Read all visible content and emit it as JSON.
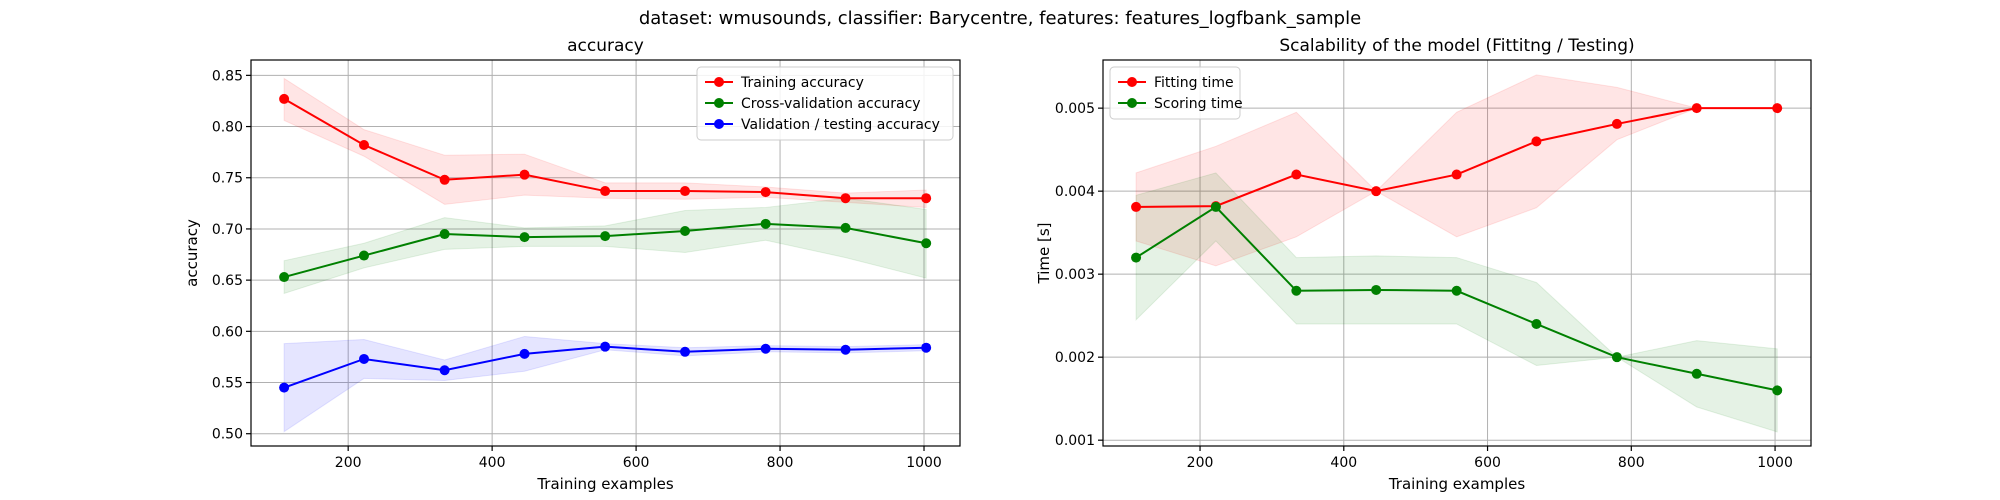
{
  "suptitle": "dataset: wmusounds, classifier: Barycentre, features: features_logfbank_sample",
  "chart_data": [
    {
      "type": "line",
      "title": "accuracy",
      "xlabel": "Training examples",
      "ylabel": "accuracy",
      "xlim": [
        65,
        1050
      ],
      "ylim": [
        0.488,
        0.865
      ],
      "xticks": [
        200,
        400,
        600,
        800,
        1000
      ],
      "xtick_labels": [
        "200",
        "400",
        "600",
        "800",
        "1000"
      ],
      "yticks": [
        0.5,
        0.55,
        0.6,
        0.65,
        0.7,
        0.75,
        0.8,
        0.85
      ],
      "ytick_labels": [
        "0.50",
        "0.55",
        "0.60",
        "0.65",
        "0.70",
        "0.75",
        "0.80",
        "0.85"
      ],
      "grid": true,
      "legend": "top-right",
      "x": [
        111,
        222,
        334,
        445,
        557,
        668,
        780,
        891,
        1003
      ],
      "series": [
        {
          "name": "Training accuracy",
          "color": "#ff0000",
          "fill": "#ff0000",
          "values": [
            0.827,
            0.782,
            0.748,
            0.753,
            0.737,
            0.737,
            0.736,
            0.73,
            0.73
          ],
          "lower": [
            0.806,
            0.771,
            0.724,
            0.733,
            0.73,
            0.729,
            0.731,
            0.726,
            0.721
          ],
          "upper": [
            0.847,
            0.797,
            0.772,
            0.773,
            0.745,
            0.745,
            0.741,
            0.735,
            0.738
          ]
        },
        {
          "name": "Cross-validation accuracy",
          "color": "#008000",
          "fill": "#008000",
          "values": [
            0.653,
            0.674,
            0.695,
            0.692,
            0.693,
            0.698,
            0.705,
            0.701,
            0.686
          ],
          "lower": [
            0.637,
            0.662,
            0.68,
            0.683,
            0.683,
            0.677,
            0.689,
            0.672,
            0.652
          ],
          "upper": [
            0.669,
            0.686,
            0.711,
            0.701,
            0.703,
            0.718,
            0.721,
            0.73,
            0.719
          ]
        },
        {
          "name": "Validation / testing accuracy",
          "color": "#0000ff",
          "fill": "#0000ff",
          "values": [
            0.545,
            0.573,
            0.562,
            0.578,
            0.585,
            0.58,
            0.583,
            0.582,
            0.584
          ],
          "lower": [
            0.502,
            0.554,
            0.552,
            0.561,
            0.582,
            0.576,
            0.58,
            0.579,
            0.581
          ],
          "upper": [
            0.588,
            0.592,
            0.572,
            0.595,
            0.588,
            0.584,
            0.586,
            0.585,
            0.587
          ]
        }
      ]
    },
    {
      "type": "line",
      "title": "Scalability of the model (Fittitng / Testing)",
      "xlabel": "Training examples",
      "ylabel": "Time [s]",
      "xlim": [
        65,
        1050
      ],
      "ylim": [
        0.00093,
        0.00558
      ],
      "xticks": [
        200,
        400,
        600,
        800,
        1000
      ],
      "xtick_labels": [
        "200",
        "400",
        "600",
        "800",
        "1000"
      ],
      "yticks": [
        0.001,
        0.002,
        0.003,
        0.004,
        0.005
      ],
      "ytick_labels": [
        "0.001",
        "0.002",
        "0.003",
        "0.004",
        "0.005"
      ],
      "grid": true,
      "legend": "top-left",
      "x": [
        111,
        222,
        334,
        445,
        557,
        668,
        780,
        891,
        1003
      ],
      "series": [
        {
          "name": "Fitting time",
          "color": "#ff0000",
          "fill": "#ff0000",
          "values": [
            0.00381,
            0.00382,
            0.0042,
            0.004,
            0.0042,
            0.0046,
            0.00481,
            0.005,
            0.005
          ],
          "lower": [
            0.0034,
            0.0031,
            0.00345,
            0.004,
            0.00345,
            0.0038,
            0.00462,
            0.005,
            0.005
          ],
          "upper": [
            0.00422,
            0.00454,
            0.00495,
            0.004,
            0.00495,
            0.0054,
            0.00525,
            0.005,
            0.005
          ]
        },
        {
          "name": "Scoring time",
          "color": "#008000",
          "fill": "#008000",
          "values": [
            0.0032,
            0.00381,
            0.0028,
            0.00281,
            0.0028,
            0.0024,
            0.002,
            0.0018,
            0.0016
          ],
          "lower": [
            0.00245,
            0.0034,
            0.0024,
            0.0024,
            0.0024,
            0.0019,
            0.002,
            0.0014,
            0.0011
          ],
          "upper": [
            0.00395,
            0.00422,
            0.0032,
            0.00322,
            0.0032,
            0.0029,
            0.002,
            0.0022,
            0.0021
          ]
        }
      ]
    }
  ]
}
